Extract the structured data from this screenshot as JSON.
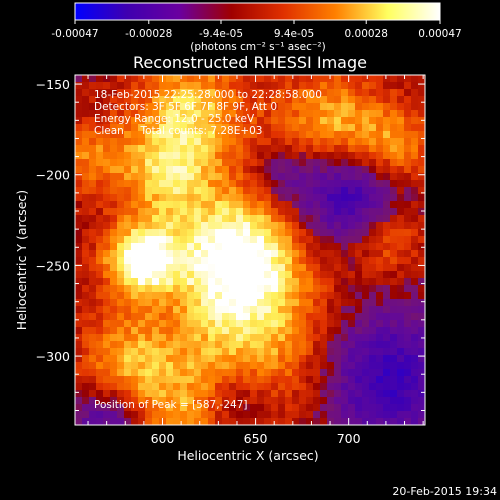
{
  "colorbar": {
    "ticks": [
      "-0.00047",
      "-0.00028",
      "-9.4e-05",
      "9.4e-05",
      "0.00028",
      "0.00047"
    ],
    "tick_values": [
      -0.00047,
      -0.00028,
      -9.4e-05,
      9.4e-05,
      0.00028,
      0.00047
    ],
    "range": [
      -0.00047,
      0.00047
    ],
    "unit_label": "(photons cm⁻² s⁻¹ asec⁻²)",
    "colors": [
      "#0000ff",
      "#3f00b0",
      "#6a00a0",
      "#a00000",
      "#e03000",
      "#ff8000",
      "#ffff60",
      "#ffffff"
    ]
  },
  "chart_data": {
    "type": "heatmap",
    "title": "Reconstructed RHESSI Image",
    "xlabel": "Heliocentric X (arcsec)",
    "ylabel": "Heliocentric Y (arcsec)",
    "xlim": [
      553,
      741
    ],
    "ylim": [
      -338,
      -145
    ],
    "x_ticks": [
      600,
      650,
      700
    ],
    "y_ticks": [
      -150,
      -200,
      -250,
      -300
    ],
    "annotations": [
      "18-Feb-2015 22:25:28.000 to 22:28:58.000",
      "Detectors: 3F 5F 6F 7F 8F 9F, Att 0",
      "Energy Range: 12.0 - 25.0 keV",
      "Clean     Total counts: 7.28E+03",
      "Position of Peak = [587,-247]"
    ],
    "peak": {
      "x": 587,
      "y": -247
    },
    "sources": [
      {
        "x": 640,
        "y": -245,
        "strength": 1.0,
        "width": 26
      },
      {
        "x": 588,
        "y": -247,
        "strength": 0.95,
        "width": 14
      },
      {
        "x": 615,
        "y": -165,
        "strength": 0.65,
        "width": 22
      },
      {
        "x": 690,
        "y": -172,
        "strength": 0.6,
        "width": 20
      },
      {
        "x": 725,
        "y": -185,
        "strength": 0.5,
        "width": 16
      },
      {
        "x": 600,
        "y": -200,
        "strength": 0.55,
        "width": 18
      },
      {
        "x": 650,
        "y": -300,
        "strength": 0.55,
        "width": 30
      },
      {
        "x": 580,
        "y": -300,
        "strength": 0.5,
        "width": 18
      },
      {
        "x": 720,
        "y": -235,
        "strength": 0.45,
        "width": 14
      },
      {
        "x": 560,
        "y": -190,
        "strength": 0.4,
        "width": 14
      },
      {
        "x": 612,
        "y": -330,
        "strength": 0.45,
        "width": 22
      }
    ],
    "cold_spots": [
      {
        "x": 700,
        "y": -212,
        "strength": 0.75,
        "width": 20
      },
      {
        "x": 720,
        "y": -312,
        "strength": 0.7,
        "width": 26
      },
      {
        "x": 640,
        "y": -325,
        "strength": 0.5,
        "width": 16
      },
      {
        "x": 570,
        "y": -338,
        "strength": 0.5,
        "width": 14
      },
      {
        "x": 665,
        "y": -200,
        "strength": 0.35,
        "width": 12
      }
    ]
  },
  "footer": {
    "timestamp": "20-Feb-2015 19:34"
  }
}
